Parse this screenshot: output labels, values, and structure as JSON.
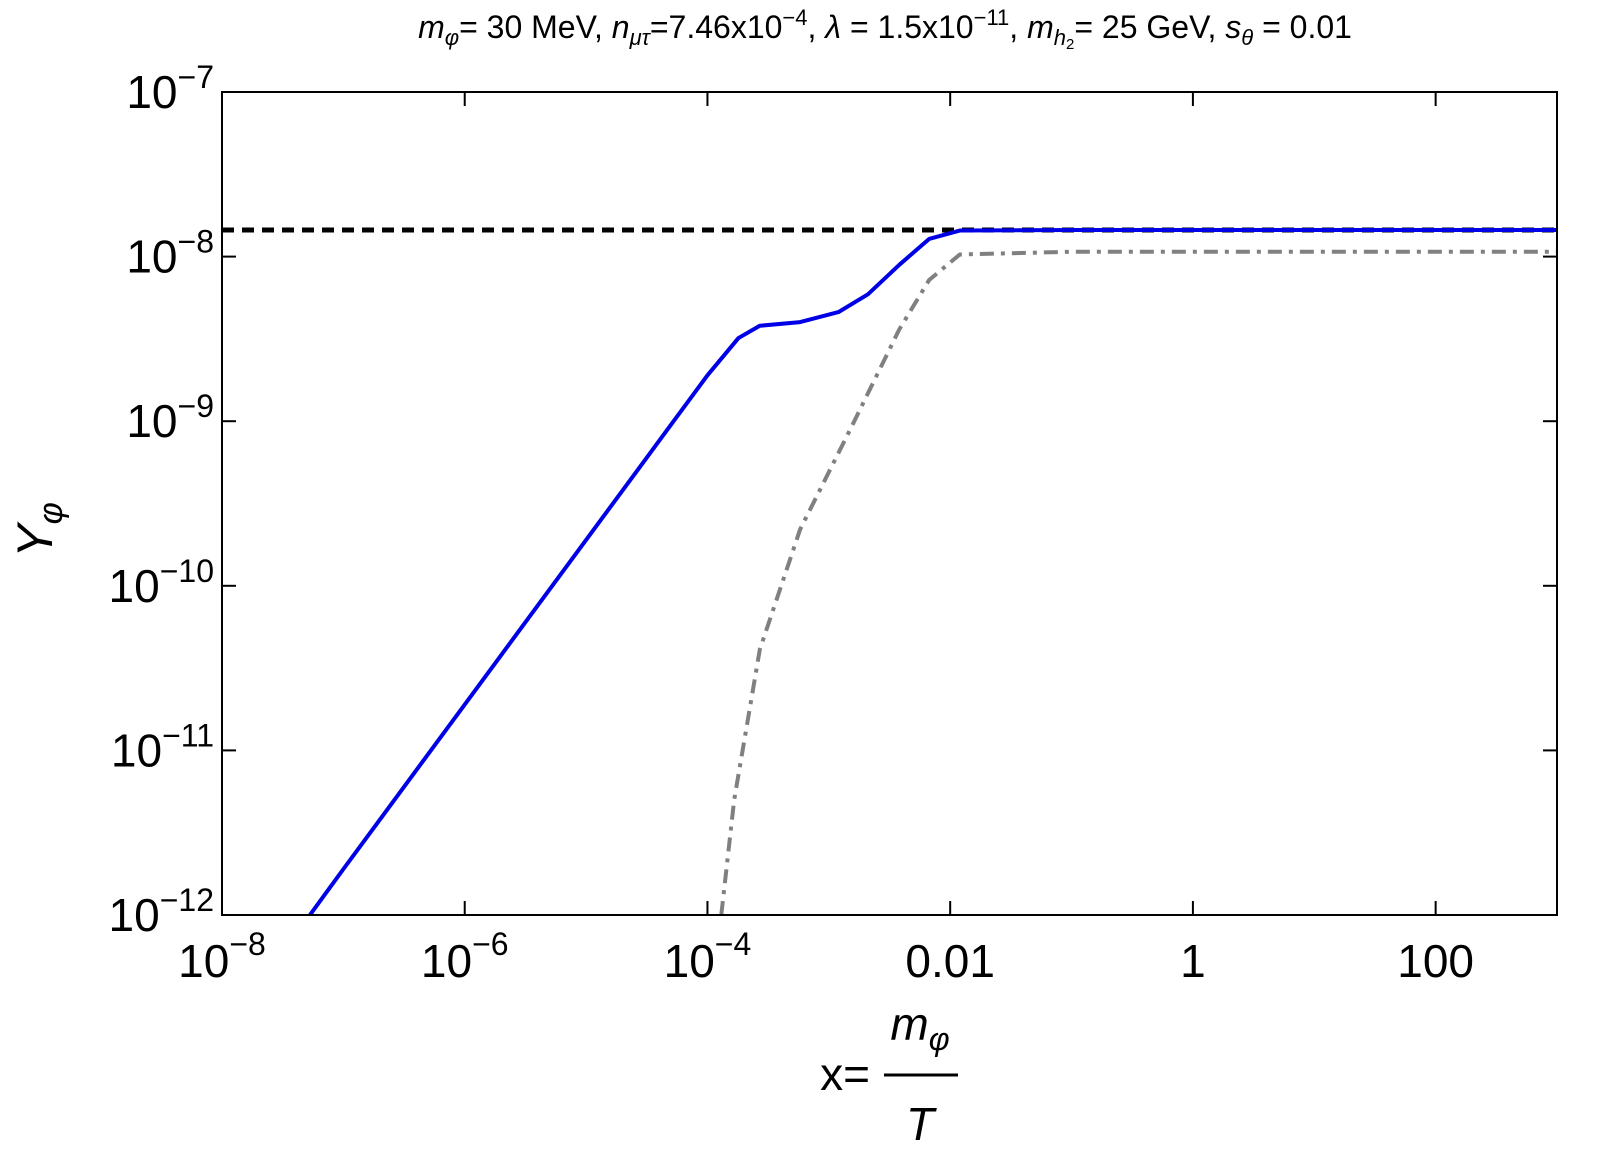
{
  "chart_data": {
    "type": "line",
    "title": [
      "m",
      "φ",
      "= 30 MeV, ",
      "n",
      "μτ",
      "=7.46x10",
      "−4",
      ", ",
      "λ",
      " = 1.5x10",
      "−11",
      ", ",
      "m",
      "h",
      "2",
      "= 25 GeV, ",
      "s",
      "θ",
      " = 0.01"
    ],
    "y_label": [
      "Y",
      "φ"
    ],
    "x_label": {
      "prefix": "x=",
      "numerator": [
        "m",
        "φ"
      ],
      "denominator": "T"
    },
    "xscale": "log",
    "yscale": "log",
    "xlim": [
      1e-08,
      1000
    ],
    "ylim": [
      1e-12,
      1e-07
    ],
    "xticks": [
      {
        "value": 1e-08,
        "label": [
          "10",
          "−8"
        ]
      },
      {
        "value": 1e-06,
        "label": [
          "10",
          "−6"
        ]
      },
      {
        "value": 0.0001,
        "label": [
          "10",
          "−4"
        ]
      },
      0.01,
      1,
      100
    ],
    "yticks": [
      {
        "value": 1e-12,
        "label": [
          "10",
          "−12"
        ]
      },
      {
        "value": 1e-11,
        "label": [
          "10",
          "−11"
        ]
      },
      {
        "value": 1e-10,
        "label": [
          "10",
          "−10"
        ]
      },
      {
        "value": 1e-09,
        "label": [
          "10",
          "−9"
        ]
      },
      {
        "value": 1e-08,
        "label": [
          "10",
          "−8"
        ]
      },
      {
        "value": 1e-07,
        "label": [
          "10",
          "−7"
        ]
      }
    ],
    "series": [
      {
        "color": "#0000e6",
        "style": "solid",
        "x": [
          5.3e-08,
          1e-07,
          1e-06,
          1e-05,
          5e-05,
          0.0001,
          0.00018,
          0.00027,
          0.00058,
          0.0012,
          0.0021,
          0.0038,
          0.0067,
          0.012,
          0.1,
          1,
          10,
          100,
          1000
        ],
        "values": [
          1e-12,
          1.9e-12,
          1.9e-11,
          1.9e-10,
          9.5e-10,
          1.9e-09,
          3.2e-09,
          3.8e-09,
          4e-09,
          4.6e-09,
          5.9e-09,
          8.9e-09,
          1.28e-08,
          1.44e-08,
          1.45e-08,
          1.45e-08,
          1.45e-08,
          1.45e-08,
          1.45e-08
        ]
      },
      {
        "color": "#808080",
        "style": "dashdot",
        "x": [
          0.00013,
          0.000166,
          0.00027,
          0.00058,
          0.0015,
          0.0038,
          0.0067,
          0.012,
          0.1,
          1,
          10,
          100,
          1000
        ],
        "values": [
          1e-12,
          5e-12,
          4.1e-11,
          2.2e-10,
          8.9e-10,
          3.6e-09,
          7.2e-09,
          1.03e-08,
          1.07e-08,
          1.07e-08,
          1.07e-08,
          1.07e-08,
          1.07e-08
        ]
      },
      {
        "color": "#000000",
        "style": "dashed",
        "x": [
          1e-08,
          1000
        ],
        "values": [
          1.45e-08,
          1.45e-08
        ]
      }
    ]
  }
}
